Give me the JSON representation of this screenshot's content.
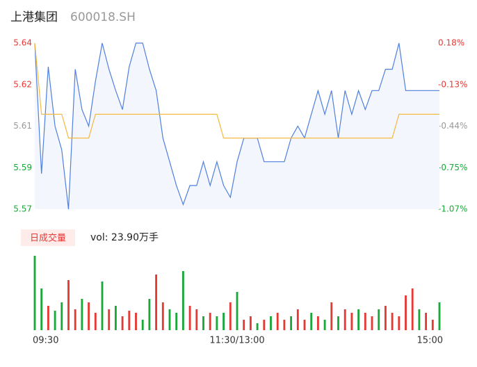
{
  "header": {
    "name": "上港集团",
    "code": "600018.SH"
  },
  "chart_data": [
    {
      "type": "line",
      "x": [
        0,
        4,
        8,
        12,
        16,
        20,
        24,
        28,
        32,
        36,
        40,
        44,
        48,
        52,
        56,
        60,
        64,
        68,
        72,
        76,
        80,
        84,
        88,
        92,
        96,
        100,
        104,
        108,
        112,
        116,
        120,
        124,
        128,
        132,
        136,
        140,
        144,
        148,
        152,
        156,
        160,
        164,
        168,
        172,
        176,
        180,
        184,
        188,
        192,
        196,
        200,
        204,
        208,
        212,
        216,
        220,
        224,
        228,
        232,
        236,
        240
      ],
      "xlim": [
        0,
        240
      ],
      "series": [
        {
          "color": "#4f7fe0",
          "fill": "#f3f6fc",
          "values": [
            5.64,
            5.585,
            5.63,
            5.605,
            5.595,
            5.57,
            5.629,
            5.612,
            5.605,
            5.624,
            5.64,
            5.629,
            5.62,
            5.612,
            5.63,
            5.64,
            5.64,
            5.629,
            5.62,
            5.6,
            5.59,
            5.58,
            5.572,
            5.58,
            5.58,
            5.59,
            5.58,
            5.59,
            5.58,
            5.575,
            5.59,
            5.6,
            5.6,
            5.6,
            5.59,
            5.59,
            5.59,
            5.59,
            5.6,
            5.605,
            5.6,
            5.61,
            5.62,
            5.61,
            5.62,
            5.6,
            5.62,
            5.61,
            5.62,
            5.612,
            5.62,
            5.62,
            5.629,
            5.629,
            5.64,
            5.62,
            5.62,
            5.62,
            5.62,
            5.62,
            5.62
          ]
        },
        {
          "color": "#f5b942",
          "values": [
            5.64,
            5.61,
            5.61,
            5.61,
            5.61,
            5.6,
            5.6,
            5.6,
            5.6,
            5.61,
            5.61,
            5.61,
            5.61,
            5.61,
            5.61,
            5.61,
            5.61,
            5.61,
            5.61,
            5.61,
            5.61,
            5.61,
            5.61,
            5.61,
            5.61,
            5.61,
            5.61,
            5.61,
            5.6,
            5.6,
            5.6,
            5.6,
            5.6,
            5.6,
            5.6,
            5.6,
            5.6,
            5.6,
            5.6,
            5.6,
            5.6,
            5.6,
            5.6,
            5.6,
            5.6,
            5.6,
            5.6,
            5.6,
            5.6,
            5.6,
            5.6,
            5.6,
            5.6,
            5.6,
            5.61,
            5.61,
            5.61,
            5.61,
            5.61,
            5.61,
            5.61
          ]
        }
      ],
      "ylim": [
        5.57,
        5.64
      ],
      "yticks": [
        {
          "value": 5.64,
          "label": "5.64"
        },
        {
          "value": 5.6225,
          "label": "5.62"
        },
        {
          "value": 5.605,
          "label": "5.61"
        },
        {
          "value": 5.5875,
          "label": "5.59"
        },
        {
          "value": 5.57,
          "label": "5.57"
        }
      ],
      "y2lim": [
        -1.07,
        0.18
      ],
      "y2ticks": [
        {
          "value": 0.18,
          "label": "0.18%"
        },
        {
          "value": -0.1325,
          "label": "-0.13%"
        },
        {
          "value": -0.445,
          "label": "-0.44%"
        },
        {
          "value": -0.7575,
          "label": "-0.75%"
        },
        {
          "value": -1.07,
          "label": "-1.07%"
        }
      ],
      "tick_colors": [
        "#e53935",
        "#e53935",
        "#999999",
        "#1aa83b",
        "#1aa83b"
      ]
    },
    {
      "type": "bar",
      "label": "日成交量",
      "vol_text": "vol: 23.90万手",
      "xticks": [
        {
          "value": 0,
          "label": "09:30"
        },
        {
          "value": 120,
          "label": "11:30/13:00"
        },
        {
          "value": 240,
          "label": "15:00"
        }
      ],
      "values": [
        107,
        60,
        35,
        28,
        40,
        72,
        30,
        45,
        40,
        25,
        70,
        30,
        35,
        20,
        28,
        25,
        15,
        45,
        80,
        40,
        30,
        25,
        85,
        35,
        30,
        20,
        25,
        20,
        25,
        40,
        55,
        15,
        20,
        10,
        15,
        20,
        25,
        15,
        20,
        30,
        15,
        25,
        20,
        15,
        40,
        20,
        30,
        25,
        30,
        25,
        20,
        30,
        35,
        25,
        20,
        50,
        60,
        30,
        25,
        15,
        40
      ],
      "colors": [
        "#1aa83b",
        "#1aa83b",
        "#e53935",
        "#1aa83b",
        "#1aa83b",
        "#e53935",
        "#e53935",
        "#1aa83b",
        "#e53935",
        "#e53935",
        "#1aa83b",
        "#e53935",
        "#1aa83b",
        "#e53935",
        "#e53935",
        "#e53935",
        "#1aa83b",
        "#1aa83b",
        "#e53935",
        "#e53935",
        "#1aa83b",
        "#1aa83b",
        "#1aa83b",
        "#e53935",
        "#e53935",
        "#1aa83b",
        "#e53935",
        "#1aa83b",
        "#1aa83b",
        "#e53935",
        "#1aa83b",
        "#e53935",
        "#e53935",
        "#1aa83b",
        "#e53935",
        "#1aa83b",
        "#e53935",
        "#e53935",
        "#1aa83b",
        "#e53935",
        "#e53935",
        "#1aa83b",
        "#e53935",
        "#1aa83b",
        "#e53935",
        "#1aa83b",
        "#e53935",
        "#e53935",
        "#1aa83b",
        "#e53935",
        "#e53935",
        "#1aa83b",
        "#e53935",
        "#e53935",
        "#e53935",
        "#e53935",
        "#e53935",
        "#1aa83b",
        "#e53935",
        "#e53935",
        "#1aa83b"
      ]
    }
  ]
}
